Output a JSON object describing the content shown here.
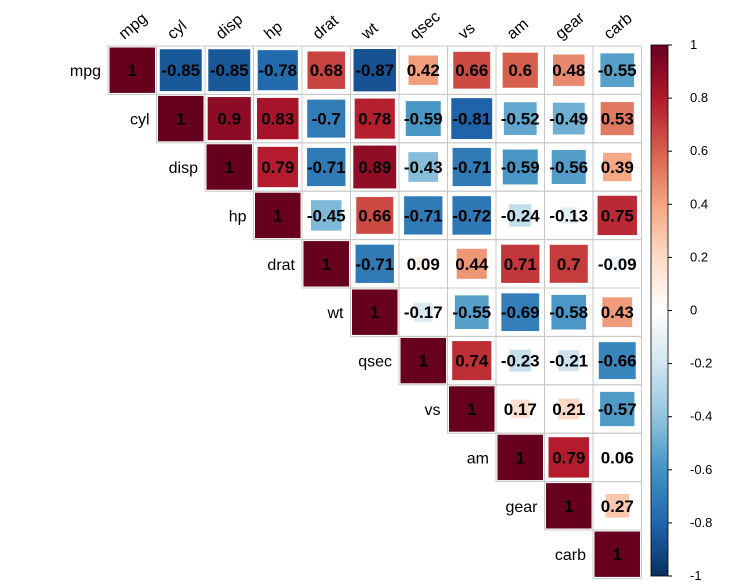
{
  "chart_data": {
    "type": "heatmap",
    "variables": [
      "mpg",
      "cyl",
      "disp",
      "hp",
      "drat",
      "wt",
      "qsec",
      "vs",
      "am",
      "gear",
      "carb"
    ],
    "matrix": [
      [
        1,
        -0.85,
        -0.85,
        -0.78,
        0.68,
        -0.87,
        0.42,
        0.66,
        0.6,
        0.48,
        -0.55
      ],
      [
        -0.85,
        1,
        0.9,
        0.83,
        -0.7,
        0.78,
        -0.59,
        -0.81,
        -0.52,
        -0.49,
        0.53
      ],
      [
        -0.85,
        0.9,
        1,
        0.79,
        -0.71,
        0.89,
        -0.43,
        -0.71,
        -0.59,
        -0.56,
        0.39
      ],
      [
        -0.78,
        0.83,
        0.79,
        1,
        -0.45,
        0.66,
        -0.71,
        -0.72,
        -0.24,
        -0.13,
        0.75
      ],
      [
        0.68,
        -0.7,
        -0.71,
        -0.45,
        1,
        -0.71,
        0.09,
        0.44,
        0.71,
        0.7,
        -0.09
      ],
      [
        -0.87,
        0.78,
        0.89,
        0.66,
        -0.71,
        1,
        -0.17,
        -0.55,
        -0.69,
        -0.58,
        0.43
      ],
      [
        0.42,
        -0.59,
        -0.43,
        -0.71,
        0.09,
        -0.17,
        1,
        0.74,
        -0.23,
        -0.21,
        -0.66
      ],
      [
        0.66,
        -0.81,
        -0.71,
        -0.72,
        0.44,
        -0.55,
        0.74,
        1,
        0.17,
        0.21,
        -0.57
      ],
      [
        0.6,
        -0.52,
        -0.59,
        -0.24,
        0.71,
        -0.69,
        -0.23,
        0.17,
        1,
        0.79,
        0.06
      ],
      [
        0.48,
        -0.49,
        -0.56,
        -0.13,
        0.7,
        -0.58,
        -0.21,
        0.21,
        0.79,
        1,
        0.27
      ],
      [
        -0.55,
        0.53,
        0.39,
        0.75,
        -0.09,
        0.43,
        -0.66,
        -0.57,
        0.06,
        0.27,
        1
      ]
    ],
    "layout": "upper-triangle",
    "colorbar": {
      "range": [
        -1,
        1
      ],
      "ticks": [
        "1",
        "0.8",
        "0.6",
        "0.4",
        "0.2",
        "0",
        "-0.2",
        "-0.4",
        "-0.6",
        "-0.8",
        "-1"
      ],
      "colors": [
        "#67001F",
        "#B2182B",
        "#D6604D",
        "#F4A582",
        "#FDDBC7",
        "#FFFFFF",
        "#D1E5F0",
        "#92C5DE",
        "#4393C3",
        "#2166AC",
        "#053061"
      ]
    }
  }
}
